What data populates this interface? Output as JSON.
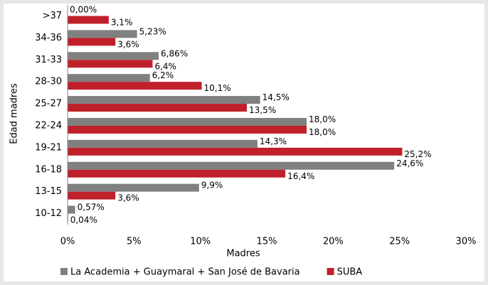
{
  "chart_data": {
    "type": "hbar",
    "categories": [
      ">37",
      "34-36",
      "31-33",
      "28-30",
      "25-27",
      "22-24",
      "19-21",
      "16-18",
      "13-15",
      "10-12"
    ],
    "series": [
      {
        "name": "La Academia + Guaymaral + San José de Bavaria",
        "color": "#808080",
        "values": [
          0.0,
          5.23,
          6.86,
          6.2,
          14.5,
          18.0,
          14.3,
          24.6,
          9.9,
          0.57
        ],
        "value_labels": [
          "0,00%",
          "5,23%",
          "6,86%",
          "6,2%",
          "14,5%",
          "18,0%",
          "14,3%",
          "24,6%",
          "9,9%",
          "0,57%"
        ]
      },
      {
        "name": "SUBA",
        "color": "#c0202a",
        "values": [
          3.1,
          3.6,
          6.4,
          10.1,
          13.5,
          18.0,
          25.2,
          16.4,
          3.6,
          0.04
        ],
        "value_labels": [
          "3,1%",
          "3,6%",
          "6,4%",
          "10,1%",
          "13,5%",
          "18,0%",
          "25,2%",
          "16,4%",
          "3,6%",
          "0,04%"
        ]
      }
    ],
    "x_label": "Madres",
    "y_label": "Edad madres",
    "xlim": [
      0,
      30
    ],
    "xticks": [
      {
        "value": 0,
        "label": "0%"
      },
      {
        "value": 5,
        "label": "5%"
      },
      {
        "value": 10,
        "label": "10%"
      },
      {
        "value": 15,
        "label": "15%"
      },
      {
        "value": 20,
        "label": "20%"
      },
      {
        "value": 25,
        "label": "25%"
      },
      {
        "value": 30,
        "label": "30%"
      }
    ],
    "legend": "bottom"
  }
}
